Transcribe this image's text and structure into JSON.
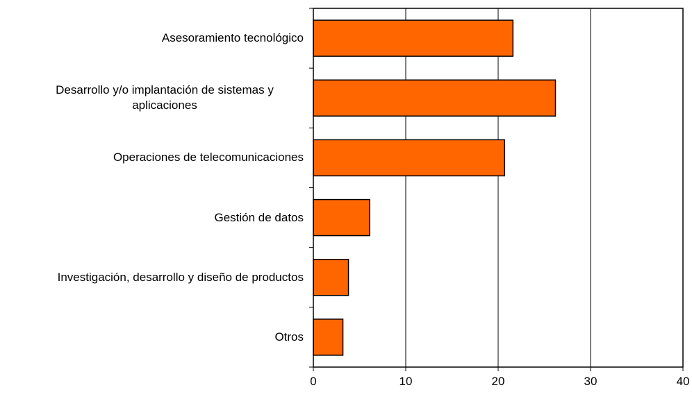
{
  "chart_data": {
    "type": "bar",
    "orientation": "horizontal",
    "categories": [
      "Asesoramiento tecnológico",
      "Desarrollo y/o implantación de sistemas y aplicaciones",
      "Operaciones de telecomunicaciones",
      "Gestión de datos",
      "Investigación, desarrollo y diseño de productos",
      "Otros"
    ],
    "values": [
      21.6,
      26.2,
      20.7,
      6.1,
      3.8,
      3.2
    ],
    "color": "#ff6600",
    "xlim": [
      0,
      40
    ],
    "xticks": [
      0,
      10,
      20,
      30,
      40
    ],
    "grid": true
  }
}
